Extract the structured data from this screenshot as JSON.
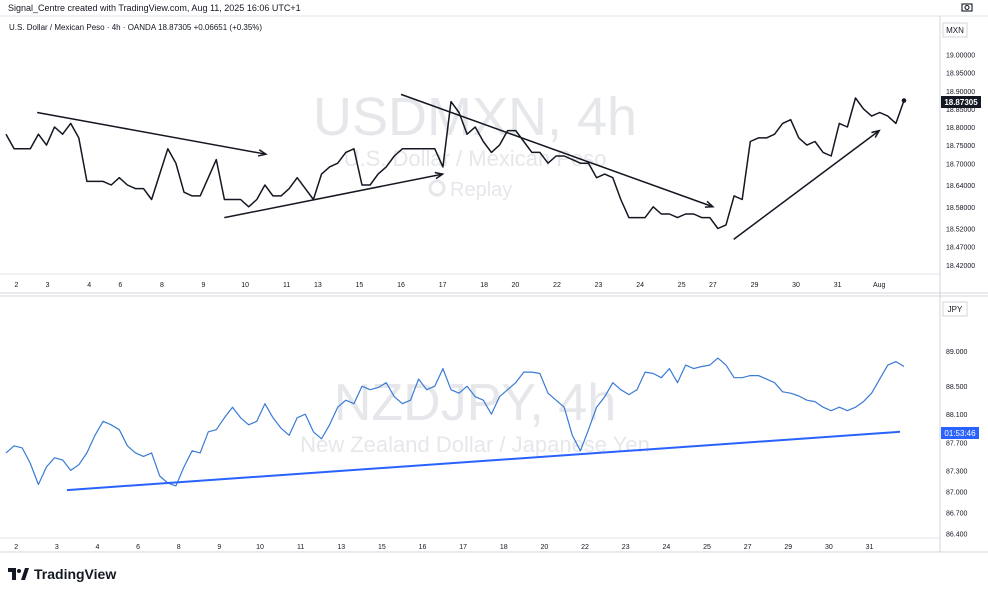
{
  "header": {
    "credit": "Signal_Centre created with TradingView.com, Aug 11, 2025 16:06 UTC+1"
  },
  "branding": {
    "logo_text": "TradingView"
  },
  "colors": {
    "top_line": "#131722",
    "bottom_line": "#3a7bd5",
    "bottom_trend": "#2962ff",
    "arrow": "#131722",
    "price_label_bg": "#131722",
    "time_label_bg": "#2962ff"
  },
  "chart_data": [
    {
      "type": "line",
      "symbol_info": "U.S. Dollar / Mexican Peso · 4h · OANDA",
      "ohlc_info": "18.87305 +0.06651 (+0.35%)",
      "watermark": {
        "symbol": "USDMXN, 4h",
        "name": "U.S. Dollar / Mexican Peso",
        "replay": "Replay"
      },
      "currency_label": "MXN",
      "price_label": "18.87305",
      "ylim": [
        18.4,
        19.04
      ],
      "yticks": [
        "19.00000",
        "18.95000",
        "18.90000",
        "18.85000",
        "18.80000",
        "18.75000",
        "18.70000",
        "18.64000",
        "18.58000",
        "18.52000",
        "18.47000",
        "18.42000"
      ],
      "x_ticks": [
        {
          "i": 1,
          "label": "2"
        },
        {
          "i": 4,
          "label": "3"
        },
        {
          "i": 8,
          "label": "4"
        },
        {
          "i": 11,
          "label": "6"
        },
        {
          "i": 15,
          "label": "8"
        },
        {
          "i": 19,
          "label": "9"
        },
        {
          "i": 23,
          "label": "10"
        },
        {
          "i": 27,
          "label": "11"
        },
        {
          "i": 30,
          "label": "13"
        },
        {
          "i": 34,
          "label": "15"
        },
        {
          "i": 38,
          "label": "16"
        },
        {
          "i": 42,
          "label": "17"
        },
        {
          "i": 46,
          "label": "18"
        },
        {
          "i": 49,
          "label": "20"
        },
        {
          "i": 53,
          "label": "22"
        },
        {
          "i": 57,
          "label": "23"
        },
        {
          "i": 61,
          "label": "24"
        },
        {
          "i": 65,
          "label": "25"
        },
        {
          "i": 68,
          "label": "27"
        },
        {
          "i": 72,
          "label": "29"
        },
        {
          "i": 76,
          "label": "30"
        },
        {
          "i": 80,
          "label": "31"
        },
        {
          "i": 84,
          "label": "Aug"
        }
      ],
      "x_count": 86,
      "values": [
        18.78,
        18.74,
        18.74,
        18.74,
        18.78,
        18.75,
        18.8,
        18.78,
        18.81,
        18.77,
        18.65,
        18.65,
        18.65,
        18.64,
        18.66,
        18.64,
        18.63,
        18.63,
        18.6,
        18.67,
        18.74,
        18.7,
        18.62,
        18.61,
        18.61,
        18.66,
        18.71,
        18.6,
        18.6,
        18.6,
        18.58,
        18.6,
        18.64,
        18.61,
        18.61,
        18.63,
        18.66,
        18.63,
        18.6,
        18.67,
        18.69,
        18.7,
        18.73,
        18.74,
        18.64,
        18.64,
        18.67,
        18.69,
        18.72,
        18.74,
        18.74,
        18.74,
        18.74,
        18.74,
        18.69,
        18.87,
        18.84,
        18.78,
        18.8,
        18.76,
        18.73,
        18.75,
        18.79,
        18.79,
        18.76,
        18.73,
        18.73,
        18.7,
        18.72,
        18.72,
        18.71,
        18.7,
        18.7,
        18.66,
        18.67,
        18.66,
        18.6,
        18.55,
        18.55,
        18.55,
        18.58,
        18.56,
        18.56,
        18.55,
        18.56,
        18.56,
        18.55,
        18.55,
        18.52,
        18.53,
        18.61,
        18.6,
        18.76,
        18.77,
        18.77,
        18.78,
        18.81,
        18.82,
        18.77,
        18.75,
        18.76,
        18.73,
        18.72,
        18.81,
        18.8,
        18.88,
        18.85,
        18.83,
        18.84,
        18.83,
        18.81,
        18.87305
      ],
      "arrows": [
        {
          "from": [
            3,
            18.84
          ],
          "to": [
            25,
            18.725
          ]
        },
        {
          "from": [
            21,
            18.55
          ],
          "to": [
            42,
            18.67
          ]
        },
        {
          "from": [
            38,
            18.89
          ],
          "to": [
            68,
            18.58
          ]
        },
        {
          "from": [
            70,
            18.49
          ],
          "to": [
            84,
            18.79
          ]
        }
      ]
    },
    {
      "type": "line",
      "watermark": {
        "symbol": "NZDJPY, 4h",
        "name": "New Zealand Dollar / Japanese Yen"
      },
      "currency_label": "JPY",
      "time_label": "01:53:46",
      "ylim": [
        86.38,
        89.3
      ],
      "yticks": [
        "89.000",
        "88.500",
        "88.100",
        "87.700",
        "87.300",
        "87.000",
        "86.700",
        "86.400"
      ],
      "x_ticks": [
        {
          "i": 1,
          "label": "2"
        },
        {
          "i": 5,
          "label": "3"
        },
        {
          "i": 9,
          "label": "4"
        },
        {
          "i": 13,
          "label": "6"
        },
        {
          "i": 17,
          "label": "8"
        },
        {
          "i": 21,
          "label": "9"
        },
        {
          "i": 25,
          "label": "10"
        },
        {
          "i": 29,
          "label": "11"
        },
        {
          "i": 33,
          "label": "13"
        },
        {
          "i": 37,
          "label": "15"
        },
        {
          "i": 41,
          "label": "16"
        },
        {
          "i": 45,
          "label": "17"
        },
        {
          "i": 49,
          "label": "18"
        },
        {
          "i": 53,
          "label": "20"
        },
        {
          "i": 57,
          "label": "22"
        },
        {
          "i": 61,
          "label": "23"
        },
        {
          "i": 65,
          "label": "24"
        },
        {
          "i": 69,
          "label": "25"
        },
        {
          "i": 73,
          "label": "27"
        },
        {
          "i": 77,
          "label": "29"
        },
        {
          "i": 81,
          "label": "30"
        },
        {
          "i": 85,
          "label": "31"
        }
      ],
      "x_count": 88,
      "values": [
        87.55,
        87.65,
        87.62,
        87.4,
        87.1,
        87.35,
        87.48,
        87.45,
        87.3,
        87.38,
        87.55,
        87.8,
        88.0,
        87.95,
        87.88,
        87.65,
        87.55,
        87.5,
        87.55,
        87.22,
        87.12,
        87.08,
        87.35,
        87.58,
        87.55,
        87.85,
        87.88,
        88.05,
        88.2,
        88.05,
        87.95,
        88.0,
        88.25,
        88.05,
        87.9,
        87.8,
        88.05,
        88.1,
        87.85,
        87.75,
        87.95,
        88.2,
        88.3,
        88.25,
        88.5,
        88.45,
        88.48,
        88.55,
        88.35,
        88.25,
        88.3,
        88.6,
        88.45,
        88.5,
        88.75,
        88.45,
        88.4,
        88.5,
        88.35,
        88.3,
        88.1,
        88.35,
        88.45,
        88.55,
        88.7,
        88.7,
        88.68,
        88.4,
        88.3,
        88.2,
        87.8,
        87.58,
        87.88,
        88.2,
        88.35,
        88.55,
        88.45,
        88.38,
        88.45,
        88.7,
        88.68,
        88.62,
        88.75,
        88.55,
        88.8,
        88.75,
        88.78,
        88.8,
        88.9,
        88.8,
        88.62,
        88.62,
        88.65,
        88.65,
        88.6,
        88.55,
        88.42,
        88.4,
        88.36,
        88.3,
        88.28,
        88.2,
        88.15,
        88.2,
        88.15,
        88.2,
        88.28,
        88.4,
        88.6,
        88.8,
        88.85,
        88.78
      ],
      "trendline": {
        "from": [
          6,
          87.02
        ],
        "to": [
          88,
          87.85
        ]
      }
    }
  ]
}
